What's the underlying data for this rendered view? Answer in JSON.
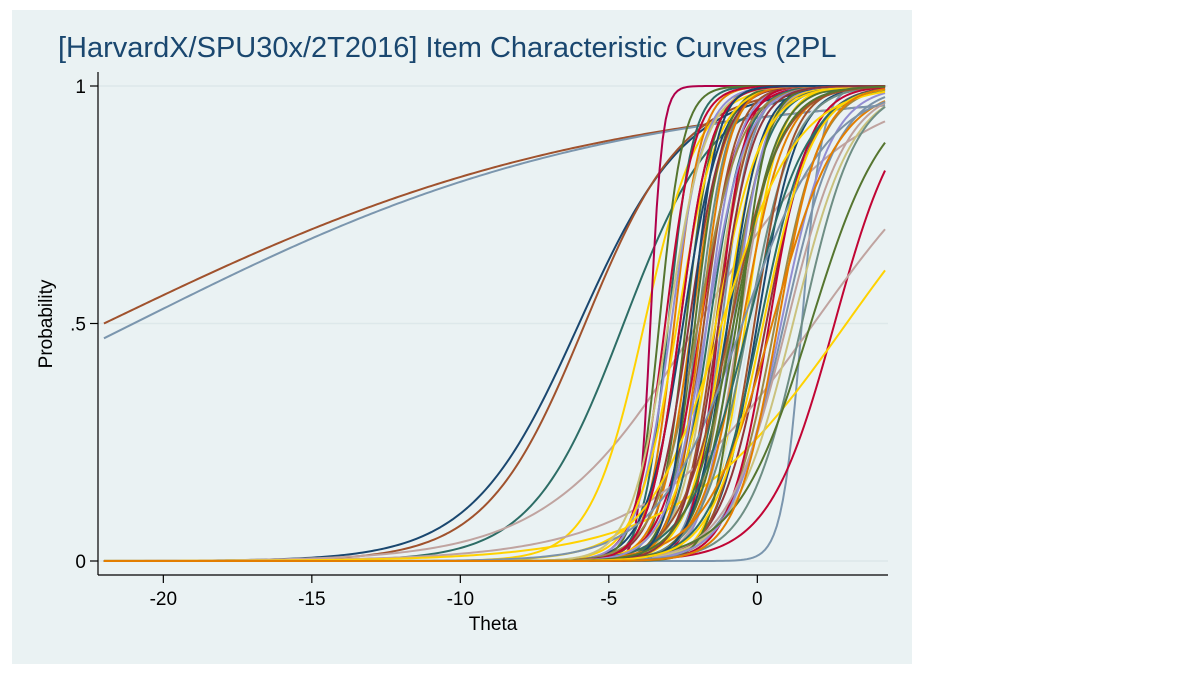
{
  "chart_data": {
    "type": "line",
    "title": "[HarvardX/SPU30x/2T2016] Item Characteristic Curves (2PL",
    "xlabel": "Theta",
    "ylabel": "Probability",
    "xlim": [
      -22.2,
      4.4
    ],
    "ylim": [
      0,
      1
    ],
    "xticks": [
      -20,
      -15,
      -10,
      -5,
      0
    ],
    "xtick_labels": [
      "-20",
      "-15",
      "-10",
      "-5",
      "0"
    ],
    "yticks": [
      0,
      0.5,
      1
    ],
    "ytick_labels": [
      "0",
      ".5",
      "1"
    ],
    "grid": "horizontal",
    "legend": "none",
    "x_range": [
      -22,
      4.3
    ],
    "function": "logistic: p = 1 / (1 + exp(-a * (theta - b)))",
    "series": [
      {
        "a": 0.12,
        "b": -22.0,
        "color": "#a0522d"
      },
      {
        "a": 0.125,
        "b": -21.0,
        "color": "#7b96ae"
      },
      {
        "a": 0.55,
        "b": -6.0,
        "color": "#1a476f"
      },
      {
        "a": 0.6,
        "b": -5.8,
        "color": "#a0522d"
      },
      {
        "a": 0.65,
        "b": -4.5,
        "color": "#2d6d66"
      },
      {
        "a": 0.4,
        "b": -2.0,
        "color": "#c0a4a0"
      },
      {
        "a": 1.1,
        "b": -3.8,
        "color": "#ffd200"
      },
      {
        "a": 5.0,
        "b": -3.6,
        "color": "#b0004a"
      },
      {
        "a": 2.4,
        "b": -3.0,
        "color": "#2d6d66"
      },
      {
        "a": 1.9,
        "b": -2.6,
        "color": "#90353b"
      },
      {
        "a": 2.2,
        "b": -2.4,
        "color": "#55752f"
      },
      {
        "a": 1.8,
        "b": -2.2,
        "color": "#e37e00"
      },
      {
        "a": 2.0,
        "b": -2.0,
        "color": "#6e8e84"
      },
      {
        "a": 1.6,
        "b": -1.9,
        "color": "#c10534"
      },
      {
        "a": 1.9,
        "b": -1.7,
        "color": "#938dd2"
      },
      {
        "a": 1.7,
        "b": -1.5,
        "color": "#cac27e"
      },
      {
        "a": 1.8,
        "b": -1.4,
        "color": "#a0522d"
      },
      {
        "a": 2.0,
        "b": -1.2,
        "color": "#7b92a8"
      },
      {
        "a": 1.5,
        "b": -1.0,
        "color": "#2d6d66"
      },
      {
        "a": 1.7,
        "b": -0.9,
        "color": "#9c8847"
      },
      {
        "a": 1.6,
        "b": -0.6,
        "color": "#bfa19c"
      },
      {
        "a": 1.8,
        "b": -0.4,
        "color": "#ffd200"
      },
      {
        "a": 1.4,
        "b": -0.2,
        "color": "#d9e6eb"
      },
      {
        "a": 1.5,
        "b": 0.0,
        "color": "#1a476f"
      },
      {
        "a": 1.3,
        "b": 0.3,
        "color": "#90353b"
      },
      {
        "a": 3.0,
        "b": 1.5,
        "color": "#7b96ae"
      },
      {
        "a": 0.9,
        "b": 2.6,
        "color": "#c10534"
      },
      {
        "a": 0.35,
        "b": 1.9,
        "color": "#c0a4a0"
      },
      {
        "a": 0.35,
        "b": 3.0,
        "color": "#ffd200"
      },
      {
        "a": 2.2,
        "b": -2.8,
        "color": "#e37e00"
      },
      {
        "a": 1.6,
        "b": -2.5,
        "color": "#1a476f"
      },
      {
        "a": 2.1,
        "b": -2.1,
        "color": "#55752f"
      },
      {
        "a": 1.9,
        "b": -1.8,
        "color": "#a0522d"
      },
      {
        "a": 1.7,
        "b": -1.6,
        "color": "#2d6d66"
      },
      {
        "a": 2.3,
        "b": -1.3,
        "color": "#c10534"
      },
      {
        "a": 1.6,
        "b": -1.1,
        "color": "#ffd200"
      },
      {
        "a": 1.9,
        "b": -0.8,
        "color": "#938dd2"
      },
      {
        "a": 1.5,
        "b": -0.7,
        "color": "#55752f"
      },
      {
        "a": 1.4,
        "b": -0.5,
        "color": "#e37e00"
      },
      {
        "a": 1.3,
        "b": -0.3,
        "color": "#6e8e84"
      },
      {
        "a": 1.6,
        "b": -0.1,
        "color": "#a0522d"
      },
      {
        "a": 1.2,
        "b": 0.1,
        "color": "#2d6d66"
      },
      {
        "a": 1.3,
        "b": 0.6,
        "color": "#9c8847"
      },
      {
        "a": 1.1,
        "b": 0.9,
        "color": "#7b92a8"
      },
      {
        "a": 1.0,
        "b": 1.2,
        "color": "#cac27e"
      },
      {
        "a": 2.5,
        "b": -3.3,
        "color": "#55752f"
      },
      {
        "a": 2.0,
        "b": -3.1,
        "color": "#c10534"
      },
      {
        "a": 1.8,
        "b": -2.9,
        "color": "#938dd2"
      },
      {
        "a": 1.5,
        "b": -2.7,
        "color": "#ffd200"
      },
      {
        "a": 1.7,
        "b": -2.3,
        "color": "#90353b"
      },
      {
        "a": 2.1,
        "b": -1.9,
        "color": "#e37e00"
      },
      {
        "a": 1.8,
        "b": -1.0,
        "color": "#1a476f"
      },
      {
        "a": 2.2,
        "b": -0.6,
        "color": "#55752f"
      },
      {
        "a": 1.5,
        "b": 0.4,
        "color": "#c10534"
      },
      {
        "a": 1.2,
        "b": 0.8,
        "color": "#938dd2"
      },
      {
        "a": 1.1,
        "b": 1.5,
        "color": "#6e8e84"
      },
      {
        "a": 1.4,
        "b": -2.0,
        "color": "#9c8847"
      },
      {
        "a": 1.3,
        "b": -1.4,
        "color": "#ffd200"
      },
      {
        "a": 1.2,
        "b": -0.9,
        "color": "#a0522d"
      },
      {
        "a": 1.0,
        "b": -0.3,
        "color": "#2d6d66"
      },
      {
        "a": 0.9,
        "b": 0.5,
        "color": "#e37e00"
      },
      {
        "a": 1.0,
        "b": 1.0,
        "color": "#bfa19c"
      },
      {
        "a": 0.8,
        "b": 1.8,
        "color": "#55752f"
      },
      {
        "a": 0.8,
        "b": -1.2,
        "color": "#ffd200"
      },
      {
        "a": 0.7,
        "b": -0.5,
        "color": "#7b92a8"
      },
      {
        "a": 1.6,
        "b": -3.0,
        "color": "#cac27e"
      },
      {
        "a": 1.9,
        "b": -2.6,
        "color": "#c10534"
      },
      {
        "a": 2.4,
        "b": -2.2,
        "color": "#1a476f"
      },
      {
        "a": 1.5,
        "b": -1.7,
        "color": "#938dd2"
      },
      {
        "a": 1.7,
        "b": -1.3,
        "color": "#90353b"
      },
      {
        "a": 1.3,
        "b": -0.8,
        "color": "#55752f"
      },
      {
        "a": 1.2,
        "b": 0.2,
        "color": "#ffd200"
      },
      {
        "a": 1.4,
        "b": 0.7,
        "color": "#e37e00"
      }
    ]
  }
}
